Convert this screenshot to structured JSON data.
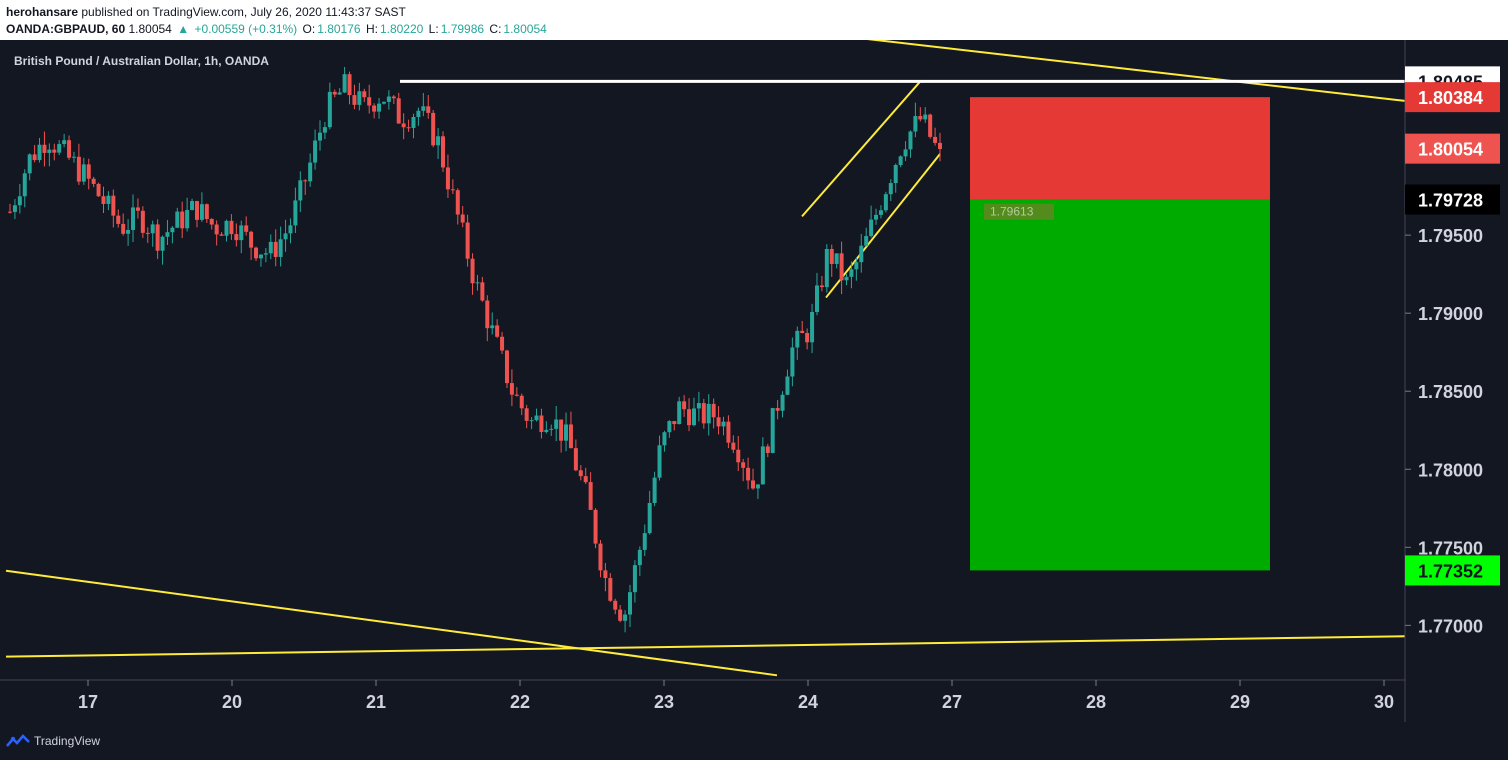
{
  "header": {
    "author": "herohansare",
    "published_text": "published on TradingView.com, July 26, 2020 11:43:37 SAST",
    "symbol": "OANDA:GBPAUD, 60",
    "last": "1.80054",
    "arrow": "▲",
    "change": "+0.00559 (+0.31%)",
    "o_label": "O:",
    "o": "1.80176",
    "h_label": "H:",
    "h": "1.80220",
    "l_label": "L:",
    "l": "1.79986",
    "c_label": "C:",
    "c": "1.80054"
  },
  "footer": {
    "brand": "TradingView"
  },
  "chart_data": {
    "type": "candlestick",
    "title": "British Pound / Australian Dollar, 1h, OANDA",
    "ylim": [
      1.7665,
      1.8075
    ],
    "y_ticks": [
      "1.80485",
      "1.80384",
      "1.80054",
      "1.79728",
      "1.79500",
      "1.79000",
      "1.78500",
      "1.78000",
      "1.77500",
      "1.77352",
      "1.77000"
    ],
    "x_ticks": [
      "17",
      "20",
      "21",
      "22",
      "23",
      "24",
      "27",
      "28",
      "29",
      "30"
    ],
    "price_labels": [
      {
        "value": 1.80485,
        "text": "1.80485",
        "bg": "#ffffff",
        "fg": "#131722"
      },
      {
        "value": 1.80384,
        "text": "1.80384",
        "bg": "#e53935",
        "fg": "#ffffff"
      },
      {
        "value": 1.80054,
        "text": "1.80054",
        "bg": "#ef5350",
        "fg": "#ffffff"
      },
      {
        "value": 1.79728,
        "text": "1.79728",
        "bg": "#000000",
        "fg": "#ffffff"
      },
      {
        "value": 1.77352,
        "text": "1.77352",
        "bg": "#00ff00",
        "fg": "#131722"
      }
    ],
    "position": {
      "entry": 1.79728,
      "stop": 1.80384,
      "target": 1.77352,
      "bubble": "1.79613",
      "stop_color": "#e53935",
      "target_color": "#00ab00"
    },
    "resistance_level": 1.80485,
    "ohlc_close": [
      1.7965,
      1.7998,
      1.8013,
      1.8001,
      1.7988,
      1.7972,
      1.7955,
      1.7962,
      1.7948,
      1.7958,
      1.7968,
      1.7955,
      1.7958,
      1.7944,
      1.7938,
      1.7955,
      1.799,
      1.803,
      1.8045,
      1.8032,
      1.804,
      1.8025,
      1.803,
      1.801,
      1.7965,
      1.792,
      1.7885,
      1.785,
      1.783,
      1.7835,
      1.7818,
      1.7782,
      1.773,
      1.7705,
      1.7756,
      1.7815,
      1.784,
      1.7834,
      1.7835,
      1.7818,
      1.7788,
      1.783,
      1.7876,
      1.789,
      1.794,
      1.7918,
      1.7945,
      1.7978,
      1.801,
      1.8025,
      1.8
    ],
    "colors": {
      "up": "#26a69a",
      "down": "#ef5350",
      "trendline": "#ffeb3b",
      "resistance": "#ffffff",
      "axis_text": "#d1d4dc",
      "background": "#131722"
    }
  }
}
